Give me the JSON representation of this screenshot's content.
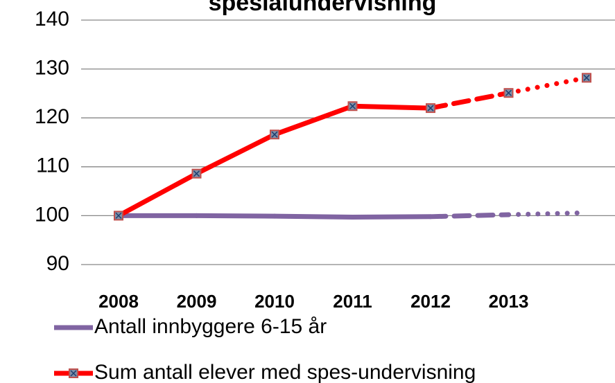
{
  "chart_data": {
    "type": "line",
    "title": "spesialundervisning",
    "categories": [
      "2008",
      "2009",
      "2010",
      "2011",
      "2012",
      "2013",
      null
    ],
    "series": [
      {
        "name": "Antall innbyggere 6-15 år",
        "color": "#8064a2",
        "values": [
          100,
          100,
          99.9,
          99.7,
          99.8,
          100.2,
          100.6
        ],
        "marker": false
      },
      {
        "name": "Sum antall elever med spes-undervisning",
        "color": "#ff0000",
        "values": [
          100,
          108.6,
          116.6,
          122.4,
          122,
          125.1,
          128.2
        ],
        "marker": true
      }
    ],
    "segment_styles": [
      "solid",
      "solid",
      "solid",
      "solid",
      "dashed",
      "dotted"
    ],
    "ylim": [
      90,
      140
    ],
    "yticks": [
      90,
      100,
      110,
      120,
      130,
      140
    ],
    "grid": true,
    "legend": "bottom"
  }
}
